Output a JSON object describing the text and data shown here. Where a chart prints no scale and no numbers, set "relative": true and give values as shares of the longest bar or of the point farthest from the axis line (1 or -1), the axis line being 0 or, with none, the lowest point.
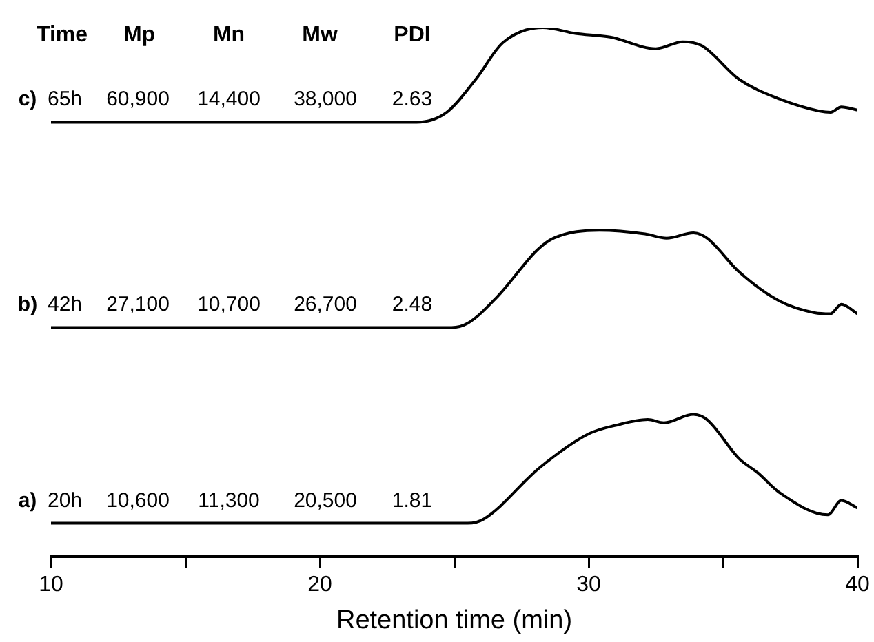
{
  "chart_data": {
    "type": "line",
    "relative": true,
    "xlabel": "Retention time (min)",
    "xlim": [
      10,
      40
    ],
    "xticks": [
      10,
      {
        "value": 15,
        "label": null
      },
      20,
      {
        "value": 25,
        "label": null
      },
      30,
      {
        "value": 35,
        "label": null
      },
      40
    ],
    "annotations": [
      "Time",
      "Mp",
      "Mn",
      "Mw",
      "PDI",
      "c)",
      "65h",
      "60,900",
      "14,400",
      "38,000",
      "2.63",
      "b)",
      "42h",
      "27,100",
      "10,700",
      "26,700",
      "2.48",
      "a)",
      "20h",
      "10,600",
      "11,300",
      "20,500",
      "1.81"
    ],
    "series": [
      {
        "color": "#000000",
        "x": [
          10,
          15,
          20,
          25.5,
          26.1,
          28.2,
          30.0,
          31.0,
          32.2,
          32.8,
          33.9,
          34.4,
          35.6,
          36.3,
          37.1,
          38.9,
          39.4,
          40
        ],
        "values": [
          0.063,
          0.063,
          0.063,
          0.063,
          0.071,
          0.169,
          0.232,
          0.248,
          0.259,
          0.253,
          0.269,
          0.259,
          0.185,
          0.158,
          0.121,
          0.079,
          0.106,
          0.092
        ]
      },
      {
        "color": "#000000",
        "x": [
          10,
          15,
          20,
          24.9,
          25.5,
          26.6,
          28.1,
          28.7,
          30.4,
          32.1,
          32.9,
          33.9,
          34.4,
          35.6,
          37.1,
          38.4,
          39.0,
          39.4,
          40
        ],
        "values": [
          0.433,
          0.433,
          0.433,
          0.433,
          0.441,
          0.491,
          0.58,
          0.602,
          0.617,
          0.61,
          0.602,
          0.612,
          0.602,
          0.538,
          0.483,
          0.461,
          0.459,
          0.477,
          0.459
        ]
      },
      {
        "color": "#000000",
        "x": [
          10,
          15,
          20,
          23.6,
          24.7,
          25.8,
          26.8,
          28.3,
          29.5,
          30.8,
          32.5,
          33.5,
          34.2,
          35.6,
          37.1,
          38.6,
          39.0,
          39.4,
          40
        ],
        "values": [
          0.821,
          0.821,
          0.821,
          0.821,
          0.839,
          0.902,
          0.971,
          1.0,
          0.989,
          0.982,
          0.96,
          0.973,
          0.966,
          0.902,
          0.865,
          0.842,
          0.84,
          0.85,
          0.844
        ]
      }
    ]
  }
}
